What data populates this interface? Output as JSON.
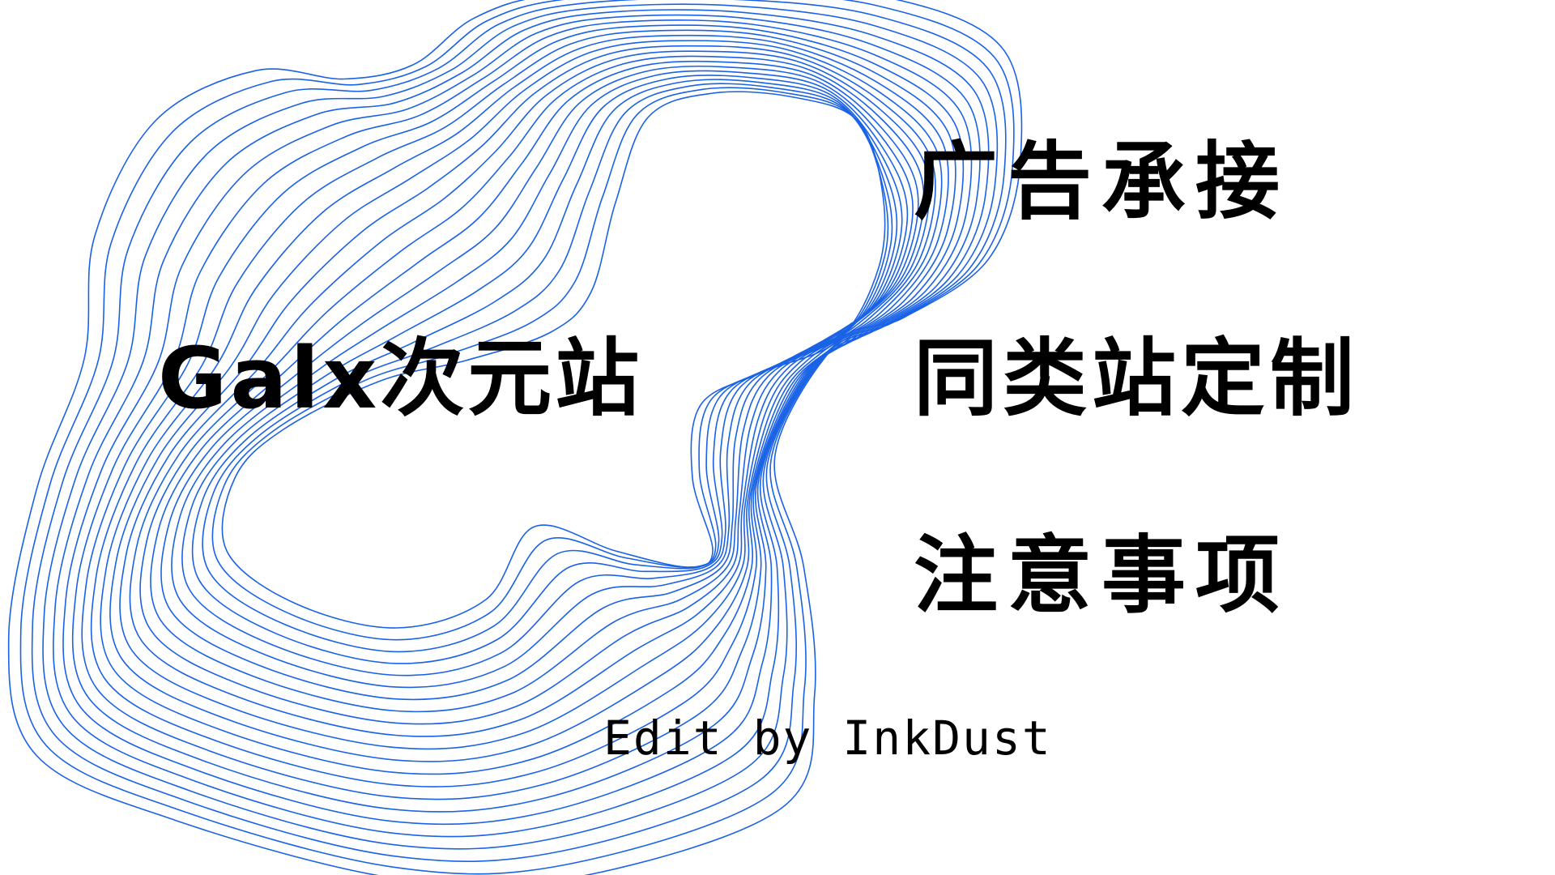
{
  "background_color": "#ffffff",
  "accent_color": "#1a62e6",
  "text_color": "#000000",
  "site_title": "Galx次元站",
  "headings": [
    "广告承接",
    "同类站定制",
    "注意事项"
  ],
  "credit": "Edit by InkDust"
}
